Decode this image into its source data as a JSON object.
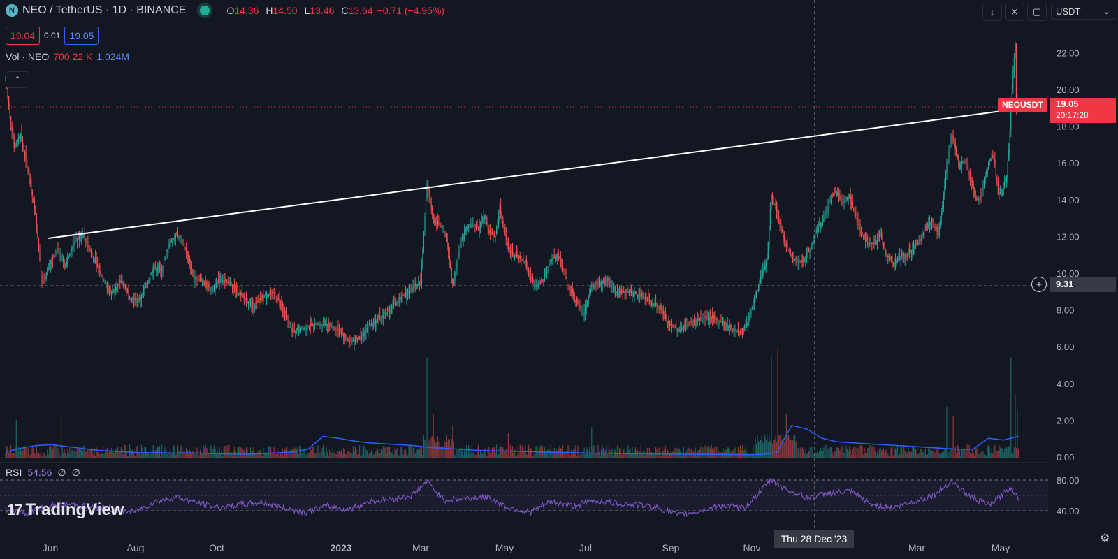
{
  "header": {
    "symbol_title": "NEO / TetherUS · 1D · BINANCE",
    "coin_icon_letter": "N",
    "ohlc": {
      "o_label": "O",
      "o": "14.36",
      "h_label": "H",
      "h": "14.50",
      "l_label": "L",
      "l": "13.46",
      "c_label": "C",
      "c": "13.64",
      "change": "−0.71 (−4.95%)"
    },
    "sell_price": "19.04",
    "spread": "0.01",
    "buy_price": "19.05",
    "volume": {
      "label": "Vol · NEO",
      "value": "700.22 K",
      "ma": "1.024M"
    }
  },
  "toolbar": {
    "currency": "USDT"
  },
  "price_scale": {
    "labels": [
      "22.00",
      "20.00",
      "18.00",
      "16.00",
      "14.00",
      "12.00",
      "10.00",
      "8.00",
      "6.00",
      "4.00",
      "2.00",
      "0.00"
    ]
  },
  "last_price": {
    "symbol": "NEOUSDT",
    "value": "19.05",
    "countdown": "20:17:28"
  },
  "crosshair": {
    "price": "9.31",
    "date": "Thu 28 Dec '23"
  },
  "time_axis": {
    "labels": [
      "Jun",
      "Aug",
      "Oct",
      "2023",
      "Mar",
      "May",
      "Jul",
      "Sep",
      "Nov",
      "Mar",
      "May"
    ]
  },
  "rsi": {
    "label": "RSI",
    "value": "54.56",
    "extra1": "∅",
    "extra2": "∅",
    "levels": [
      "80.00",
      "40.00"
    ]
  },
  "logo": {
    "text": "TradingView"
  },
  "colors": {
    "background": "#131722",
    "up": "#26a69a",
    "down": "#ef5350",
    "volume_ma": "#2962ff",
    "rsi": "#7e57c2",
    "trendline": "#ffffff",
    "last_price": "#f23645"
  },
  "chart_data": {
    "type": "candlestick",
    "title": "NEO / TetherUS · 1D · BINANCE",
    "ylim": [
      0,
      24
    ],
    "x_ticks": [
      "Jun",
      "Aug",
      "Oct",
      "2023",
      "Mar",
      "May",
      "Jul",
      "Sep",
      "Nov",
      "Mar",
      "May"
    ],
    "price_path": [
      {
        "t": 0,
        "p": 20.5
      },
      {
        "t": 8,
        "p": 16.8
      },
      {
        "t": 14,
        "p": 17.6
      },
      {
        "t": 22,
        "p": 15.2
      },
      {
        "t": 28,
        "p": 13.2
      },
      {
        "t": 34,
        "p": 9.4
      },
      {
        "t": 40,
        "p": 10.3
      },
      {
        "t": 48,
        "p": 11.2
      },
      {
        "t": 56,
        "p": 10.5
      },
      {
        "t": 64,
        "p": 11.7
      },
      {
        "t": 72,
        "p": 12.2
      },
      {
        "t": 80,
        "p": 11.1
      },
      {
        "t": 90,
        "p": 9.8
      },
      {
        "t": 98,
        "p": 8.9
      },
      {
        "t": 108,
        "p": 9.6
      },
      {
        "t": 118,
        "p": 8.5
      },
      {
        "t": 126,
        "p": 8.6
      },
      {
        "t": 132,
        "p": 9.4
      },
      {
        "t": 138,
        "p": 10.3
      },
      {
        "t": 146,
        "p": 10.2
      },
      {
        "t": 152,
        "p": 11.5
      },
      {
        "t": 160,
        "p": 12.2
      },
      {
        "t": 168,
        "p": 11.3
      },
      {
        "t": 176,
        "p": 9.8
      },
      {
        "t": 184,
        "p": 9.6
      },
      {
        "t": 192,
        "p": 9.1
      },
      {
        "t": 200,
        "p": 9.7
      },
      {
        "t": 210,
        "p": 9.4
      },
      {
        "t": 222,
        "p": 8.7
      },
      {
        "t": 232,
        "p": 8.2
      },
      {
        "t": 242,
        "p": 8.8
      },
      {
        "t": 252,
        "p": 8.9
      },
      {
        "t": 260,
        "p": 7.9
      },
      {
        "t": 268,
        "p": 6.8
      },
      {
        "t": 278,
        "p": 7.0
      },
      {
        "t": 290,
        "p": 7.2
      },
      {
        "t": 300,
        "p": 7.3
      },
      {
        "t": 312,
        "p": 6.8
      },
      {
        "t": 322,
        "p": 6.3
      },
      {
        "t": 332,
        "p": 6.5
      },
      {
        "t": 340,
        "p": 7.2
      },
      {
        "t": 350,
        "p": 7.6
      },
      {
        "t": 360,
        "p": 8.1
      },
      {
        "t": 370,
        "p": 8.7
      },
      {
        "t": 380,
        "p": 9.2
      },
      {
        "t": 388,
        "p": 9.5
      },
      {
        "t": 394,
        "p": 14.9
      },
      {
        "t": 400,
        "p": 12.8
      },
      {
        "t": 406,
        "p": 12.6
      },
      {
        "t": 412,
        "p": 12.0
      },
      {
        "t": 418,
        "p": 9.4
      },
      {
        "t": 424,
        "p": 11.2
      },
      {
        "t": 430,
        "p": 12.5
      },
      {
        "t": 436,
        "p": 12.7
      },
      {
        "t": 442,
        "p": 12.4
      },
      {
        "t": 448,
        "p": 13.2
      },
      {
        "t": 452,
        "p": 12.2
      },
      {
        "t": 458,
        "p": 12.0
      },
      {
        "t": 462,
        "p": 13.5
      },
      {
        "t": 470,
        "p": 11.3
      },
      {
        "t": 478,
        "p": 10.9
      },
      {
        "t": 486,
        "p": 10.6
      },
      {
        "t": 494,
        "p": 9.3
      },
      {
        "t": 502,
        "p": 9.5
      },
      {
        "t": 510,
        "p": 10.8
      },
      {
        "t": 518,
        "p": 10.9
      },
      {
        "t": 526,
        "p": 9.3
      },
      {
        "t": 534,
        "p": 8.4
      },
      {
        "t": 540,
        "p": 7.7
      },
      {
        "t": 548,
        "p": 9.3
      },
      {
        "t": 556,
        "p": 9.5
      },
      {
        "t": 564,
        "p": 9.6
      },
      {
        "t": 572,
        "p": 8.9
      },
      {
        "t": 582,
        "p": 9.0
      },
      {
        "t": 592,
        "p": 8.8
      },
      {
        "t": 602,
        "p": 8.5
      },
      {
        "t": 612,
        "p": 8.1
      },
      {
        "t": 620,
        "p": 7.2
      },
      {
        "t": 630,
        "p": 6.9
      },
      {
        "t": 640,
        "p": 7.3
      },
      {
        "t": 650,
        "p": 7.5
      },
      {
        "t": 660,
        "p": 7.6
      },
      {
        "t": 670,
        "p": 7.3
      },
      {
        "t": 680,
        "p": 7.0
      },
      {
        "t": 688,
        "p": 6.8
      },
      {
        "t": 694,
        "p": 7.4
      },
      {
        "t": 700,
        "p": 8.5
      },
      {
        "t": 706,
        "p": 9.8
      },
      {
        "t": 712,
        "p": 10.8
      },
      {
        "t": 716,
        "p": 14.3
      },
      {
        "t": 722,
        "p": 13.2
      },
      {
        "t": 728,
        "p": 11.7
      },
      {
        "t": 734,
        "p": 11.0
      },
      {
        "t": 740,
        "p": 10.7
      },
      {
        "t": 746,
        "p": 10.6
      },
      {
        "t": 752,
        "p": 11.3
      },
      {
        "t": 758,
        "p": 12.3
      },
      {
        "t": 764,
        "p": 12.8
      },
      {
        "t": 770,
        "p": 13.8
      },
      {
        "t": 776,
        "p": 14.4
      },
      {
        "t": 782,
        "p": 13.9
      },
      {
        "t": 788,
        "p": 14.2
      },
      {
        "t": 794,
        "p": 13.3
      },
      {
        "t": 800,
        "p": 12.2
      },
      {
        "t": 806,
        "p": 11.6
      },
      {
        "t": 812,
        "p": 11.6
      },
      {
        "t": 818,
        "p": 12.1
      },
      {
        "t": 824,
        "p": 11.0
      },
      {
        "t": 830,
        "p": 10.5
      },
      {
        "t": 836,
        "p": 10.9
      },
      {
        "t": 842,
        "p": 11.0
      },
      {
        "t": 848,
        "p": 11.3
      },
      {
        "t": 854,
        "p": 11.8
      },
      {
        "t": 860,
        "p": 12.4
      },
      {
        "t": 866,
        "p": 12.9
      },
      {
        "t": 872,
        "p": 12.1
      },
      {
        "t": 876,
        "p": 13.7
      },
      {
        "t": 880,
        "p": 15.8
      },
      {
        "t": 884,
        "p": 17.5
      },
      {
        "t": 888,
        "p": 16.7
      },
      {
        "t": 892,
        "p": 15.9
      },
      {
        "t": 896,
        "p": 16.2
      },
      {
        "t": 900,
        "p": 15.6
      },
      {
        "t": 904,
        "p": 14.7
      },
      {
        "t": 908,
        "p": 14.0
      },
      {
        "t": 912,
        "p": 14.1
      },
      {
        "t": 916,
        "p": 15.3
      },
      {
        "t": 920,
        "p": 16.2
      },
      {
        "t": 924,
        "p": 16.4
      },
      {
        "t": 928,
        "p": 14.3
      },
      {
        "t": 932,
        "p": 14.5
      },
      {
        "t": 936,
        "p": 15.3
      },
      {
        "t": 938,
        "p": 16.7
      },
      {
        "t": 940,
        "p": 18.8
      },
      {
        "t": 942,
        "p": 21.0
      },
      {
        "t": 944,
        "p": 22.4
      },
      {
        "t": 945,
        "p": 18.9
      },
      {
        "t": 946,
        "p": 19.4
      },
      {
        "t": 947,
        "p": 19.05
      }
    ],
    "volume_ma": [
      0.35,
      0.55,
      0.7,
      0.75,
      0.65,
      0.55,
      0.45,
      0.4,
      0.35,
      0.3,
      0.32,
      0.28,
      0.3,
      0.28,
      0.25,
      0.24,
      0.23,
      0.26,
      0.3,
      0.35,
      0.5,
      1.2,
      1.1,
      0.95,
      0.85,
      0.8,
      0.75,
      0.7,
      0.6,
      0.55,
      0.5,
      0.45,
      0.42,
      0.4,
      0.38,
      0.36,
      0.34,
      0.32,
      0.3,
      0.28,
      0.27,
      0.26,
      0.25,
      0.24,
      0.24,
      0.23,
      0.22,
      0.22,
      0.21,
      0.2,
      0.22,
      0.3,
      1.8,
      1.6,
      1.1,
      0.9,
      0.85,
      0.8,
      0.75,
      0.7,
      0.65,
      0.6,
      0.55,
      0.5,
      0.5,
      1.1,
      1.0,
      1.2
    ],
    "volume_spikes": [
      {
        "t": 10,
        "v": 2.1
      },
      {
        "t": 52,
        "v": 2.5
      },
      {
        "t": 394,
        "v": 5.5
      },
      {
        "t": 400,
        "v": 2.4
      },
      {
        "t": 418,
        "v": 1.8
      },
      {
        "t": 470,
        "v": 1.4
      },
      {
        "t": 548,
        "v": 1.7
      },
      {
        "t": 716,
        "v": 5.6
      },
      {
        "t": 722,
        "v": 6.0
      },
      {
        "t": 730,
        "v": 2.4
      },
      {
        "t": 880,
        "v": 2.8
      },
      {
        "t": 886,
        "v": 2.3
      },
      {
        "t": 940,
        "v": 5.5
      },
      {
        "t": 944,
        "v": 3.5
      },
      {
        "t": 946,
        "v": 2.6
      }
    ],
    "rsi": [
      {
        "t": 0,
        "v": 42
      },
      {
        "t": 20,
        "v": 37
      },
      {
        "t": 40,
        "v": 46
      },
      {
        "t": 60,
        "v": 48
      },
      {
        "t": 80,
        "v": 45
      },
      {
        "t": 100,
        "v": 42
      },
      {
        "t": 120,
        "v": 38
      },
      {
        "t": 140,
        "v": 52
      },
      {
        "t": 160,
        "v": 58
      },
      {
        "t": 180,
        "v": 50
      },
      {
        "t": 200,
        "v": 44
      },
      {
        "t": 220,
        "v": 48
      },
      {
        "t": 240,
        "v": 51
      },
      {
        "t": 260,
        "v": 44
      },
      {
        "t": 280,
        "v": 38
      },
      {
        "t": 300,
        "v": 46
      },
      {
        "t": 320,
        "v": 41
      },
      {
        "t": 340,
        "v": 52
      },
      {
        "t": 360,
        "v": 55
      },
      {
        "t": 380,
        "v": 60
      },
      {
        "t": 394,
        "v": 78
      },
      {
        "t": 410,
        "v": 54
      },
      {
        "t": 430,
        "v": 56
      },
      {
        "t": 450,
        "v": 58
      },
      {
        "t": 470,
        "v": 44
      },
      {
        "t": 490,
        "v": 38
      },
      {
        "t": 510,
        "v": 52
      },
      {
        "t": 530,
        "v": 46
      },
      {
        "t": 550,
        "v": 53
      },
      {
        "t": 570,
        "v": 50
      },
      {
        "t": 590,
        "v": 48
      },
      {
        "t": 610,
        "v": 44
      },
      {
        "t": 630,
        "v": 34
      },
      {
        "t": 650,
        "v": 40
      },
      {
        "t": 670,
        "v": 47
      },
      {
        "t": 690,
        "v": 43
      },
      {
        "t": 716,
        "v": 80
      },
      {
        "t": 730,
        "v": 68
      },
      {
        "t": 750,
        "v": 57
      },
      {
        "t": 770,
        "v": 63
      },
      {
        "t": 790,
        "v": 65
      },
      {
        "t": 810,
        "v": 48
      },
      {
        "t": 830,
        "v": 44
      },
      {
        "t": 850,
        "v": 52
      },
      {
        "t": 870,
        "v": 62
      },
      {
        "t": 884,
        "v": 79
      },
      {
        "t": 900,
        "v": 60
      },
      {
        "t": 920,
        "v": 47
      },
      {
        "t": 940,
        "v": 71
      },
      {
        "t": 947,
        "v": 54.56
      }
    ],
    "trendline": [
      {
        "t": 40,
        "p": 11.9
      },
      {
        "t": 954,
        "p": 19.0
      }
    ]
  }
}
